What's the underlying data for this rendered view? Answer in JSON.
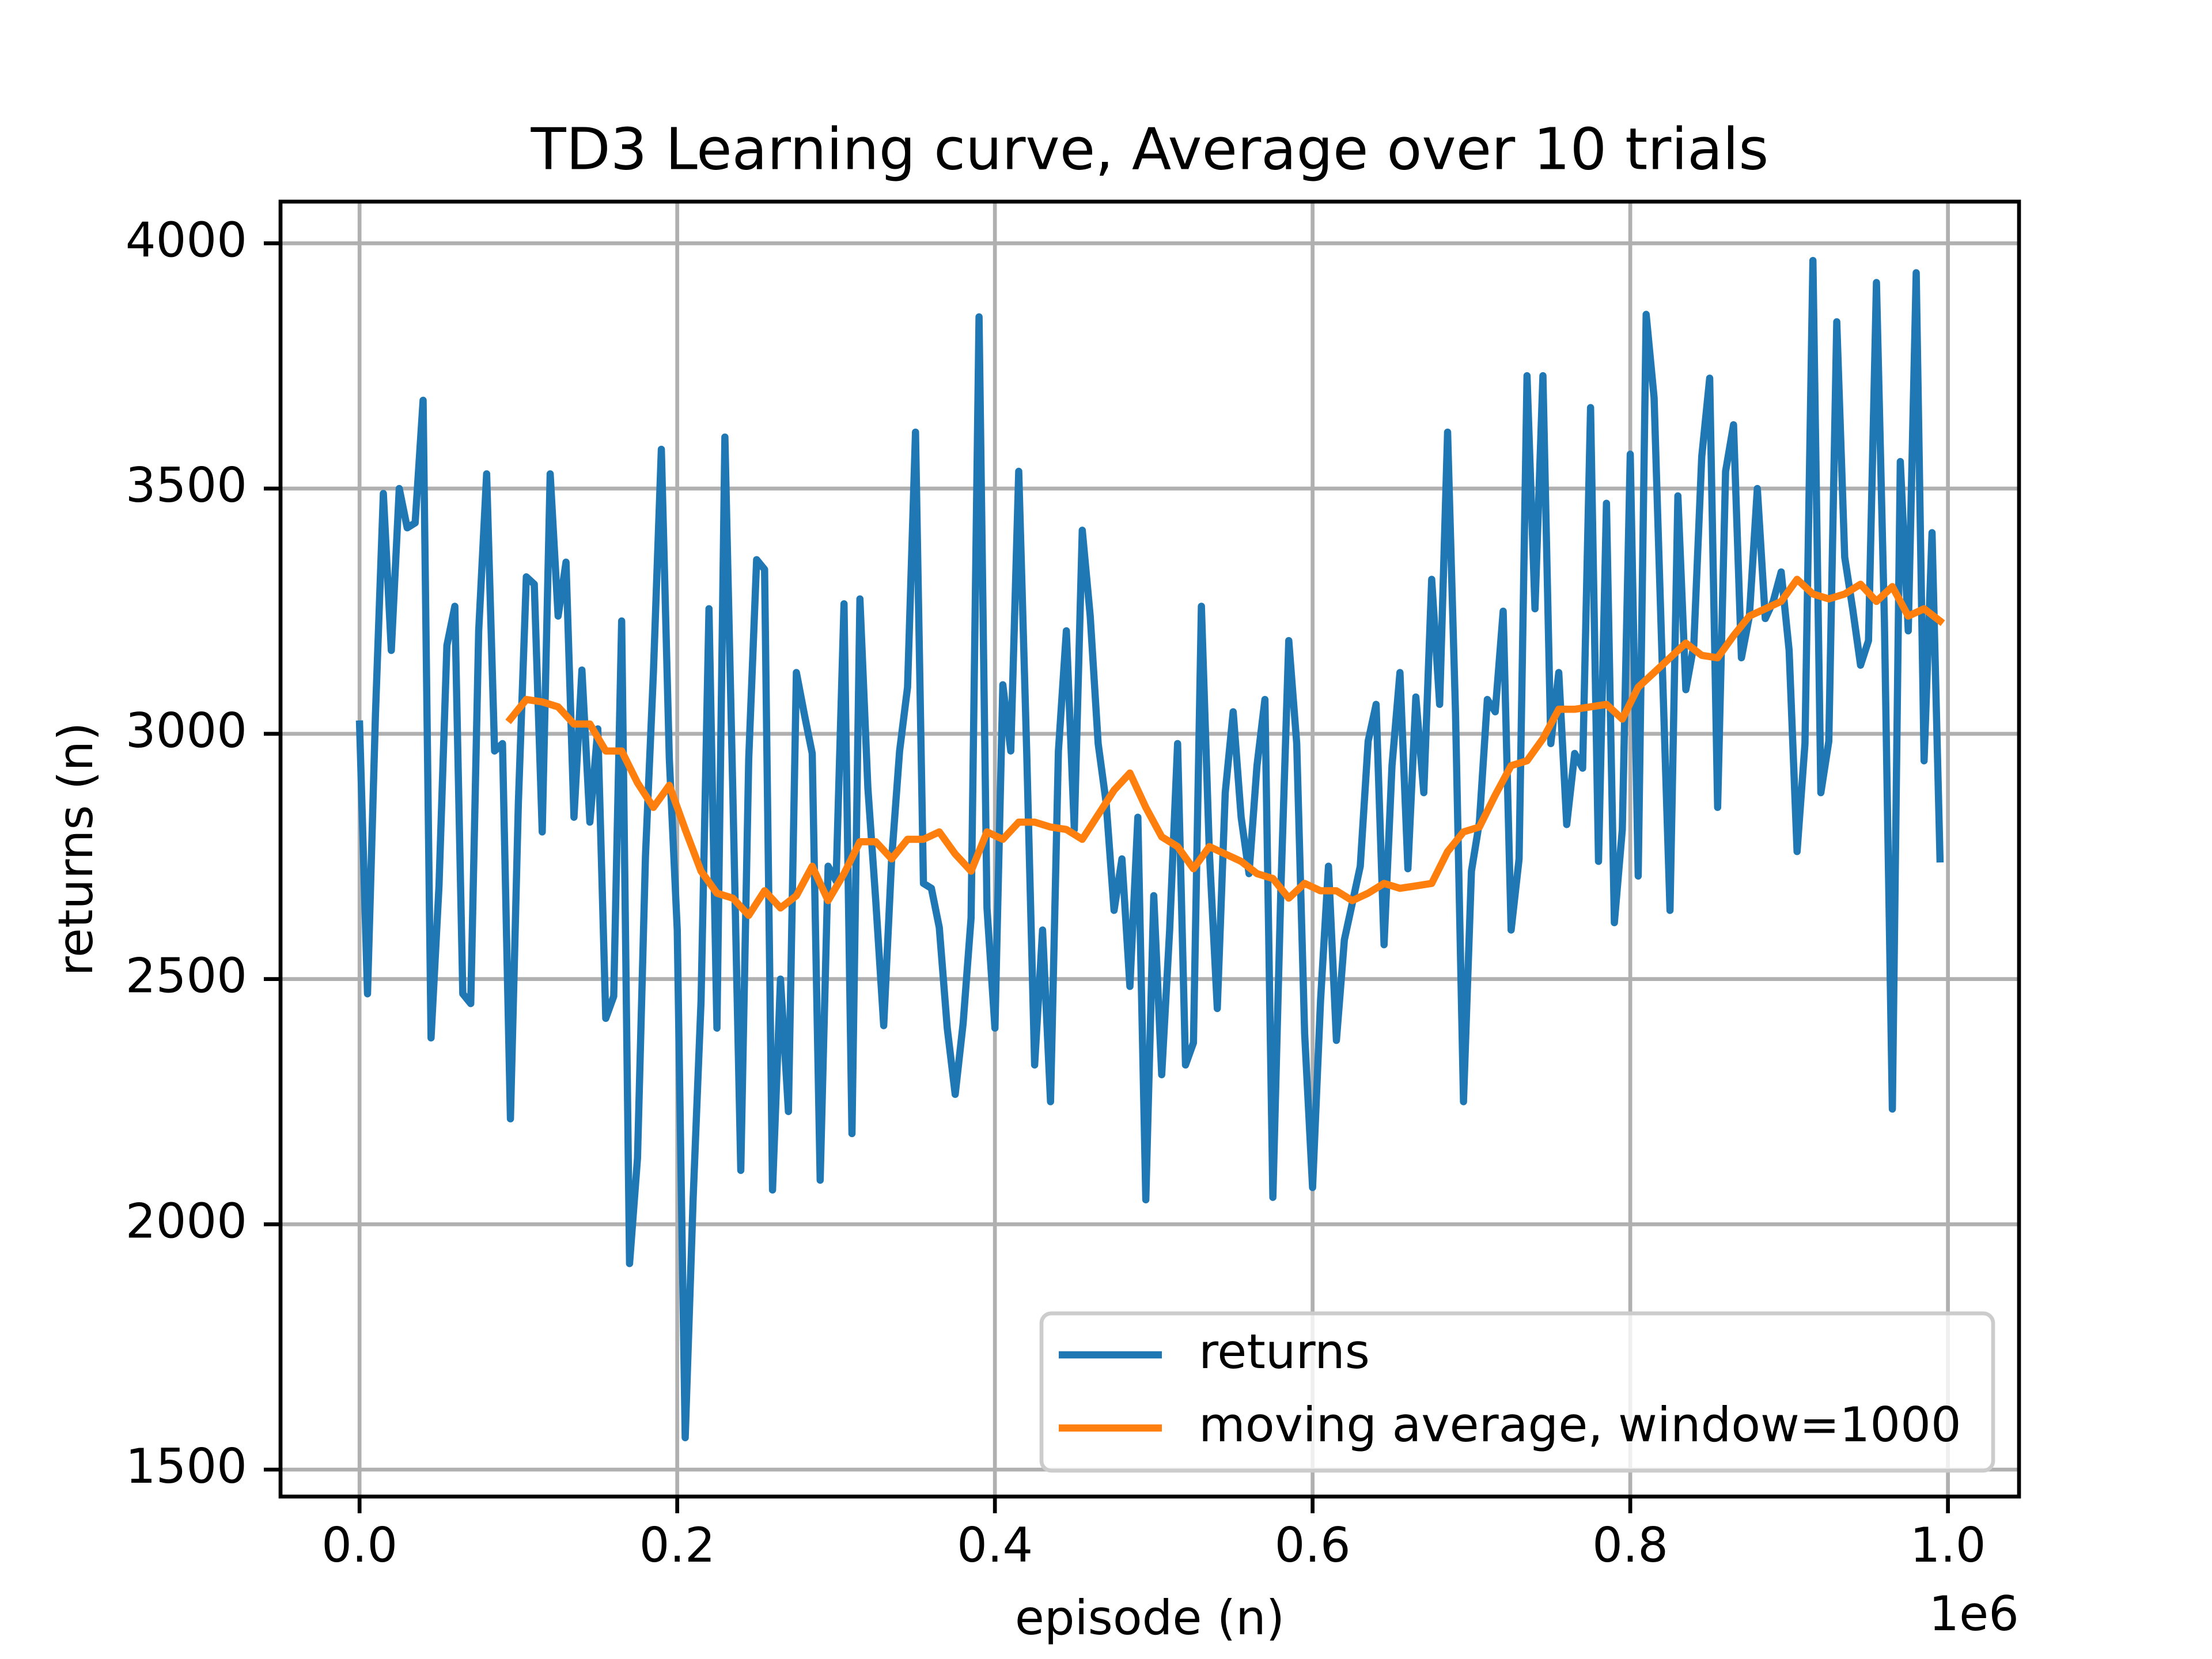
{
  "chart_data": {
    "type": "line",
    "title": "TD3 Learning curve, Average over 10 trials",
    "x_label": "episode (n)",
    "y_label": "returns (n)",
    "x_offset_label": "1e6",
    "xlim": [
      -49750,
      1044750
    ],
    "ylim": [
      1445,
      4085
    ],
    "xticks": [
      {
        "value": 0,
        "label": "0.0"
      },
      {
        "value": 200000,
        "label": "0.2"
      },
      {
        "value": 400000,
        "label": "0.4"
      },
      {
        "value": 600000,
        "label": "0.6"
      },
      {
        "value": 800000,
        "label": "0.8"
      },
      {
        "value": 1000000,
        "label": "1.0"
      }
    ],
    "yticks": [
      1500,
      2000,
      2500,
      3000,
      3500,
      4000
    ],
    "grid": true,
    "legend_position": "lower-right",
    "series": [
      {
        "name": "returns",
        "color": "#1f77b4",
        "x": [
          0,
          5000,
          10000,
          15000,
          20000,
          25000,
          30000,
          35000,
          40000,
          45000,
          50000,
          55000,
          60000,
          65000,
          70000,
          75000,
          80000,
          85000,
          90000,
          95000,
          100000,
          105000,
          110000,
          115000,
          120000,
          125000,
          130000,
          135000,
          140000,
          145000,
          150000,
          155000,
          160000,
          165000,
          170000,
          175000,
          180000,
          185000,
          190000,
          195000,
          200000,
          205000,
          210000,
          215000,
          220000,
          225000,
          230000,
          235000,
          240000,
          245000,
          250000,
          255000,
          260000,
          265000,
          270000,
          275000,
          280000,
          285000,
          290000,
          295000,
          300000,
          305000,
          310000,
          315000,
          320000,
          325000,
          330000,
          335000,
          340000,
          345000,
          350000,
          355000,
          360000,
          365000,
          370000,
          375000,
          380000,
          385000,
          390000,
          395000,
          400000,
          405000,
          410000,
          415000,
          420000,
          425000,
          430000,
          435000,
          440000,
          445000,
          450000,
          455000,
          460000,
          465000,
          470000,
          475000,
          480000,
          485000,
          490000,
          495000,
          500000,
          505000,
          510000,
          515000,
          520000,
          525000,
          530000,
          535000,
          540000,
          545000,
          550000,
          555000,
          560000,
          565000,
          570000,
          575000,
          580000,
          585000,
          590000,
          595000,
          600000,
          605000,
          610000,
          615000,
          620000,
          625000,
          630000,
          635000,
          640000,
          645000,
          650000,
          655000,
          660000,
          665000,
          670000,
          675000,
          680000,
          685000,
          690000,
          695000,
          700000,
          705000,
          710000,
          715000,
          720000,
          725000,
          730000,
          735000,
          740000,
          745000,
          750000,
          755000,
          760000,
          765000,
          770000,
          775000,
          780000,
          785000,
          790000,
          795000,
          800000,
          805000,
          810000,
          815000,
          820000,
          825000,
          830000,
          835000,
          840000,
          845000,
          850000,
          855000,
          860000,
          865000,
          870000,
          875000,
          880000,
          885000,
          890000,
          895000,
          900000,
          905000,
          910000,
          915000,
          920000,
          925000,
          930000,
          935000,
          940000,
          945000,
          950000,
          955000,
          960000,
          965000,
          970000,
          975000,
          980000,
          985000,
          990000,
          995000
        ],
        "values": [
          3020,
          2470,
          3040,
          3490,
          3170,
          3500,
          3420,
          3430,
          3680,
          2380,
          2690,
          3180,
          3260,
          2470,
          2450,
          3210,
          3530,
          2965,
          2980,
          2215,
          2860,
          3320,
          3305,
          2800,
          3530,
          3240,
          3350,
          2830,
          3130,
          2820,
          3010,
          2420,
          2465,
          3230,
          1920,
          2135,
          2750,
          3125,
          3580,
          2950,
          2600,
          1565,
          2050,
          2455,
          3255,
          2400,
          3605,
          2880,
          2110,
          2950,
          3355,
          3335,
          2070,
          2500,
          2230,
          3125,
          3040,
          2960,
          2090,
          2730,
          2700,
          3265,
          2185,
          3275,
          2890,
          2660,
          2405,
          2745,
          2965,
          3095,
          3615,
          2695,
          2685,
          2605,
          2400,
          2265,
          2410,
          2625,
          3850,
          2645,
          2400,
          3100,
          2965,
          3535,
          2965,
          2325,
          2600,
          2250,
          2965,
          3210,
          2805,
          3415,
          3240,
          2980,
          2860,
          2640,
          2745,
          2485,
          2830,
          2050,
          2670,
          2305,
          2600,
          2980,
          2325,
          2370,
          3260,
          2760,
          2440,
          2880,
          3045,
          2830,
          2715,
          2935,
          3070,
          2055,
          2680,
          3190,
          2980,
          2390,
          2075,
          2455,
          2730,
          2375,
          2580,
          2655,
          2730,
          2985,
          3060,
          2570,
          2935,
          3125,
          2725,
          3075,
          2880,
          3315,
          3060,
          3615,
          3040,
          2250,
          2720,
          2820,
          3070,
          3045,
          3250,
          2600,
          2745,
          3730,
          3255,
          3730,
          2980,
          3125,
          2815,
          2960,
          2930,
          3665,
          2740,
          3470,
          2615,
          2805,
          3570,
          2710,
          3855,
          3685,
          3155,
          2640,
          3485,
          3090,
          3180,
          3565,
          3725,
          2850,
          3535,
          3630,
          3155,
          3240,
          3500,
          3235,
          3270,
          3330,
          3170,
          2760,
          2980,
          3965,
          2880,
          2985,
          3840,
          3360,
          3255,
          3140,
          3190,
          3920,
          3230,
          2235,
          3555,
          3210,
          3940,
          2945,
          3410,
          2745
        ]
      },
      {
        "name": "moving average, window=1000",
        "color": "#ff7f0e",
        "x": [
          95000,
          105000,
          115000,
          125000,
          135000,
          145000,
          155000,
          165000,
          175000,
          185000,
          195000,
          205000,
          215000,
          225000,
          235000,
          245000,
          255000,
          265000,
          275000,
          285000,
          295000,
          305000,
          315000,
          325000,
          335000,
          345000,
          355000,
          365000,
          375000,
          385000,
          395000,
          405000,
          415000,
          425000,
          435000,
          445000,
          455000,
          465000,
          475000,
          485000,
          495000,
          505000,
          515000,
          525000,
          535000,
          545000,
          555000,
          565000,
          575000,
          585000,
          595000,
          605000,
          615000,
          625000,
          635000,
          645000,
          655000,
          665000,
          675000,
          685000,
          695000,
          705000,
          715000,
          725000,
          735000,
          745000,
          755000,
          765000,
          775000,
          785000,
          795000,
          805000,
          815000,
          825000,
          835000,
          845000,
          855000,
          865000,
          875000,
          885000,
          895000,
          905000,
          915000,
          925000,
          935000,
          945000,
          955000,
          965000,
          975000,
          985000,
          995000
        ],
        "values": [
          3030,
          3070,
          3065,
          3055,
          3020,
          3020,
          2965,
          2965,
          2900,
          2850,
          2895,
          2805,
          2720,
          2675,
          2665,
          2630,
          2680,
          2645,
          2670,
          2730,
          2660,
          2715,
          2780,
          2780,
          2745,
          2785,
          2785,
          2800,
          2755,
          2720,
          2800,
          2785,
          2820,
          2820,
          2810,
          2805,
          2785,
          2835,
          2885,
          2920,
          2850,
          2790,
          2770,
          2725,
          2770,
          2755,
          2740,
          2715,
          2705,
          2665,
          2695,
          2680,
          2680,
          2660,
          2675,
          2695,
          2685,
          2690,
          2695,
          2760,
          2800,
          2810,
          2875,
          2935,
          2945,
          2990,
          3050,
          3050,
          3055,
          3060,
          3030,
          3095,
          3125,
          3155,
          3185,
          3160,
          3155,
          3200,
          3240,
          3255,
          3270,
          3315,
          3285,
          3275,
          3285,
          3305,
          3270,
          3300,
          3240,
          3255,
          3230
        ]
      }
    ]
  }
}
